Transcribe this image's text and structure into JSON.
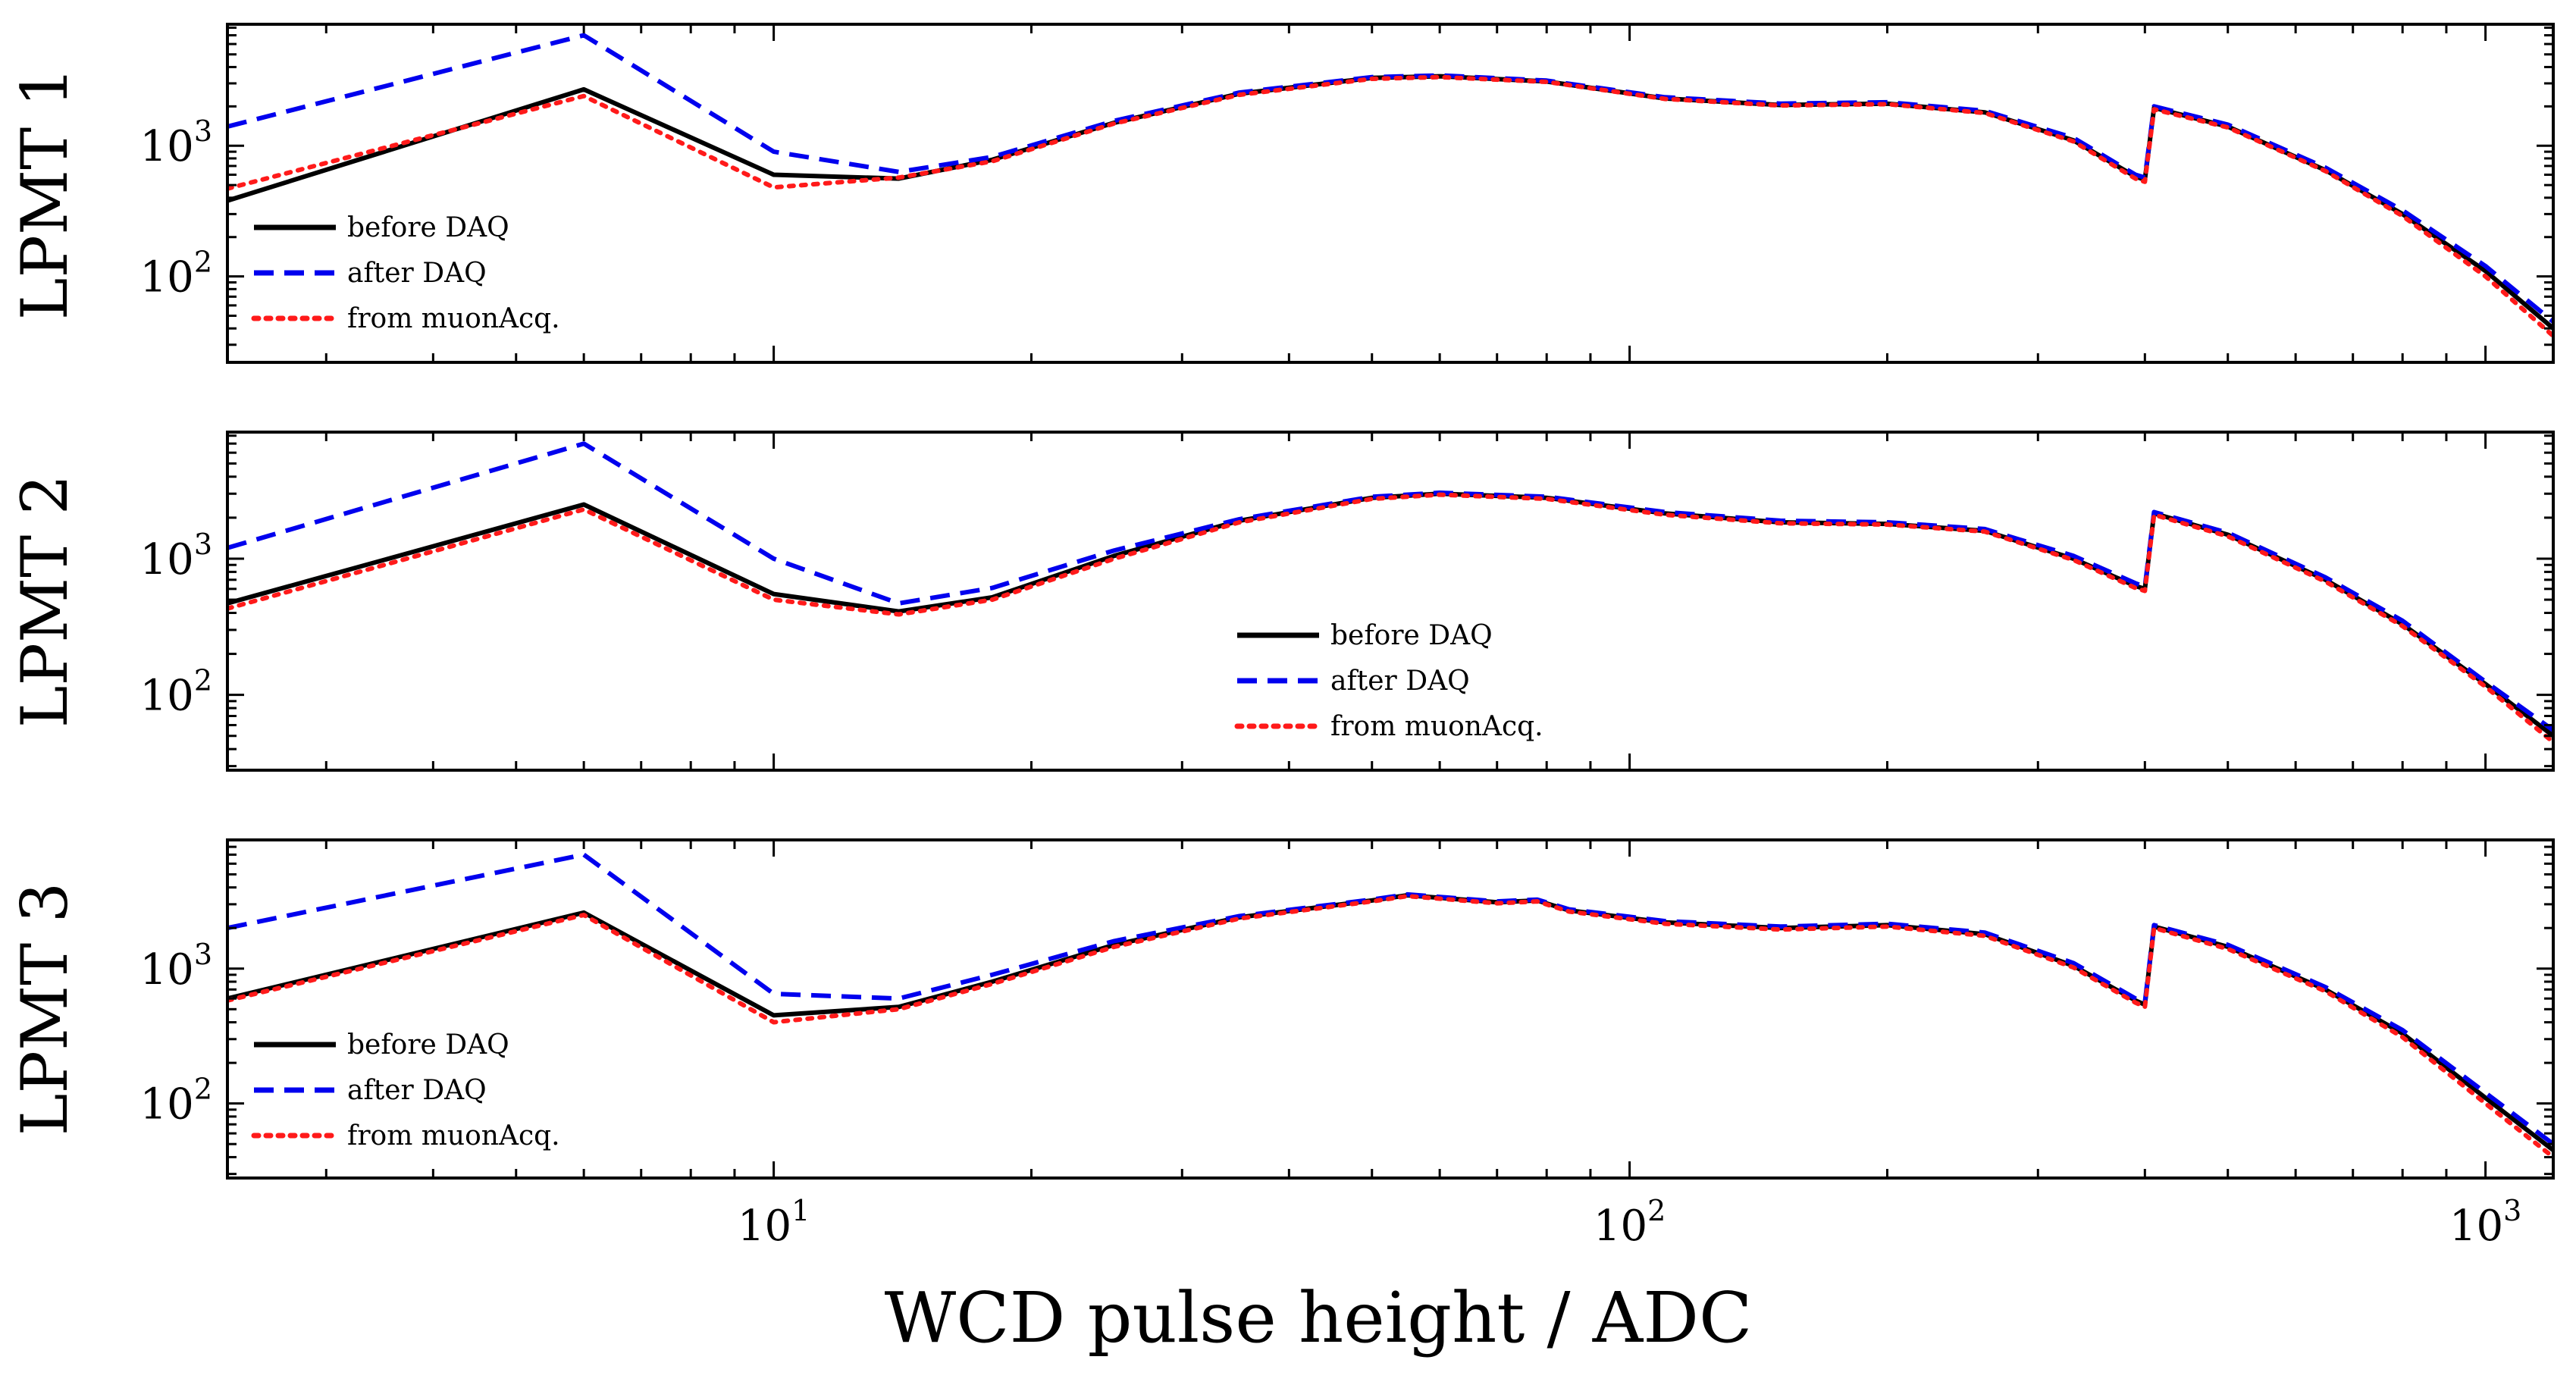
{
  "xlabel": "WCD pulse height / ADC",
  "colors": {
    "before": "#000000",
    "after": "#0000ee",
    "muon": "#ff1a1a"
  },
  "chart_data": [
    {
      "type": "line",
      "ylabel": "LPMT 1",
      "xscale": "log",
      "yscale": "log",
      "xlim": [
        2.3,
        1200
      ],
      "ylim": [
        22,
        8500
      ],
      "xticks": [
        10,
        100,
        1000
      ],
      "yticks": [
        100,
        1000
      ],
      "legend": {
        "placement": "lower-left",
        "entries": [
          "before DAQ",
          "after DAQ",
          "from muonAcq."
        ]
      },
      "series": [
        {
          "name": "before DAQ",
          "style": "solid",
          "x": [
            2.3,
            6,
            10,
            14,
            18,
            25,
            35,
            50,
            60,
            80,
            110,
            150,
            200,
            260,
            330,
            390,
            400,
            410,
            500,
            650,
            800,
            1000,
            1200
          ],
          "y": [
            380,
            2700,
            600,
            560,
            780,
            1500,
            2500,
            3300,
            3400,
            3100,
            2300,
            2050,
            2100,
            1800,
            1100,
            580,
            550,
            1950,
            1400,
            650,
            300,
            110,
            40
          ]
        },
        {
          "name": "after DAQ",
          "style": "dashed",
          "x": [
            2.3,
            6,
            10,
            14,
            18,
            25,
            35,
            50,
            60,
            80,
            110,
            150,
            200,
            260,
            330,
            390,
            400,
            410,
            500,
            650,
            800,
            1000,
            1200
          ],
          "y": [
            1400,
            7000,
            900,
            630,
            820,
            1550,
            2550,
            3350,
            3450,
            3150,
            2350,
            2100,
            2150,
            1850,
            1150,
            600,
            570,
            2000,
            1450,
            680,
            320,
            120,
            45
          ]
        },
        {
          "name": "from muonAcq.",
          "style": "dotted",
          "x": [
            2.3,
            6,
            10,
            14,
            18,
            25,
            35,
            50,
            60,
            80,
            110,
            150,
            200,
            260,
            330,
            390,
            400,
            410,
            500,
            650,
            800,
            1000,
            1200
          ],
          "y": [
            470,
            2400,
            480,
            570,
            760,
            1480,
            2450,
            3250,
            3350,
            3080,
            2280,
            2030,
            2080,
            1780,
            1080,
            560,
            530,
            1900,
            1380,
            640,
            290,
            100,
            35
          ]
        }
      ]
    },
    {
      "type": "line",
      "ylabel": "LPMT 2",
      "xscale": "log",
      "yscale": "log",
      "xlim": [
        2.3,
        1200
      ],
      "ylim": [
        28,
        8500
      ],
      "xticks": [
        10,
        100,
        1000
      ],
      "yticks": [
        100,
        1000
      ],
      "legend": {
        "placement": "lower-center",
        "entries": [
          "before DAQ",
          "after DAQ",
          "from muonAcq."
        ]
      },
      "series": [
        {
          "name": "before DAQ",
          "style": "solid",
          "x": [
            2.3,
            6,
            10,
            14,
            18,
            25,
            35,
            50,
            60,
            80,
            110,
            150,
            200,
            260,
            330,
            390,
            400,
            410,
            500,
            650,
            800,
            1000,
            1200
          ],
          "y": [
            470,
            2500,
            550,
            410,
            520,
            1050,
            1900,
            2800,
            3000,
            2800,
            2150,
            1850,
            1800,
            1600,
            1000,
            630,
            600,
            2150,
            1500,
            700,
            330,
            120,
            50
          ]
        },
        {
          "name": "after DAQ",
          "style": "dashed",
          "x": [
            2.3,
            6,
            10,
            14,
            18,
            25,
            35,
            50,
            60,
            80,
            110,
            150,
            200,
            260,
            330,
            390,
            400,
            410,
            500,
            650,
            800,
            1000,
            1200
          ],
          "y": [
            1200,
            7000,
            1000,
            470,
            610,
            1150,
            1950,
            2850,
            3050,
            2850,
            2200,
            1900,
            1850,
            1650,
            1050,
            660,
            620,
            2200,
            1550,
            730,
            350,
            125,
            55
          ]
        },
        {
          "name": "from muonAcq.",
          "style": "dotted",
          "x": [
            2.3,
            6,
            10,
            14,
            18,
            25,
            35,
            50,
            60,
            80,
            110,
            150,
            200,
            260,
            330,
            390,
            400,
            410,
            500,
            650,
            800,
            1000,
            1200
          ],
          "y": [
            430,
            2300,
            500,
            390,
            500,
            1000,
            1850,
            2750,
            2950,
            2750,
            2100,
            1820,
            1780,
            1580,
            980,
            610,
            580,
            2100,
            1460,
            680,
            320,
            115,
            45
          ]
        }
      ]
    },
    {
      "type": "line",
      "ylabel": "LPMT 3",
      "xscale": "log",
      "yscale": "log",
      "xlim": [
        2.3,
        1200
      ],
      "ylim": [
        28,
        9000
      ],
      "xticks": [
        10,
        100,
        1000
      ],
      "yticks": [
        100,
        1000
      ],
      "legend": {
        "placement": "lower-left",
        "entries": [
          "before DAQ",
          "after DAQ",
          "from muonAcq."
        ]
      },
      "series": [
        {
          "name": "before DAQ",
          "style": "solid",
          "x": [
            2.3,
            6,
            10,
            14,
            18,
            25,
            35,
            50,
            55,
            70,
            78,
            85,
            110,
            150,
            200,
            260,
            330,
            390,
            400,
            410,
            500,
            650,
            800,
            1000,
            1200
          ],
          "y": [
            600,
            2600,
            450,
            520,
            800,
            1500,
            2400,
            3200,
            3500,
            3100,
            3200,
            2700,
            2200,
            2000,
            2100,
            1800,
            1050,
            580,
            540,
            2050,
            1450,
            700,
            330,
            110,
            45
          ]
        },
        {
          "name": "after DAQ",
          "style": "dashed",
          "x": [
            2.3,
            6,
            10,
            14,
            18,
            25,
            35,
            50,
            55,
            70,
            78,
            85,
            110,
            150,
            200,
            260,
            330,
            390,
            400,
            410,
            500,
            650,
            800,
            1000,
            1200
          ],
          "y": [
            2000,
            7000,
            650,
            600,
            900,
            1600,
            2450,
            3250,
            3550,
            3150,
            3250,
            2750,
            2250,
            2050,
            2150,
            1850,
            1100,
            600,
            560,
            2100,
            1500,
            730,
            350,
            120,
            50
          ]
        },
        {
          "name": "from muonAcq.",
          "style": "dotted",
          "x": [
            2.3,
            6,
            10,
            14,
            18,
            25,
            35,
            50,
            55,
            70,
            78,
            85,
            110,
            150,
            200,
            260,
            330,
            390,
            400,
            410,
            500,
            650,
            800,
            1000,
            1200
          ],
          "y": [
            580,
            2500,
            400,
            500,
            770,
            1450,
            2350,
            3150,
            3450,
            3050,
            3150,
            2650,
            2150,
            1950,
            2050,
            1750,
            1020,
            560,
            520,
            2000,
            1400,
            680,
            310,
            100,
            40
          ]
        }
      ]
    }
  ]
}
